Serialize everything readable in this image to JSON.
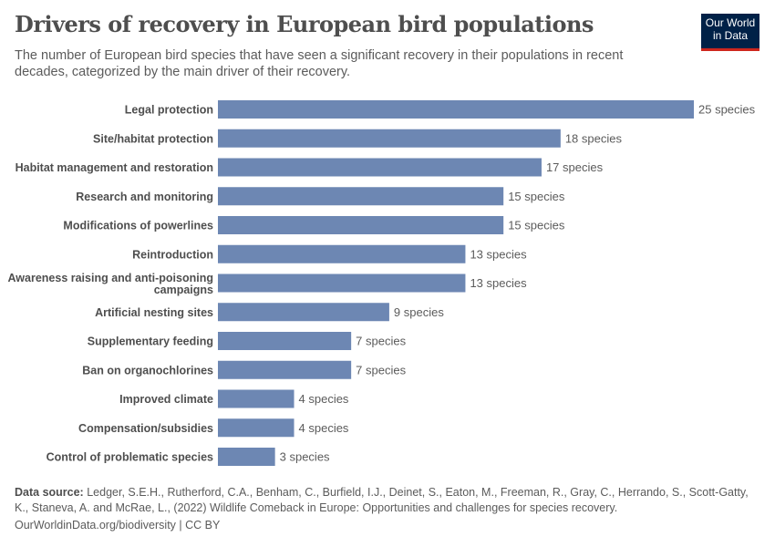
{
  "header": {
    "title": "Drivers of recovery in European bird populations",
    "subtitle": "The number of European bird species that have seen a significant recovery in their populations in recent decades, categorized by the main driver of their recovery.",
    "logo": "Our World in Data"
  },
  "chart_data": {
    "type": "bar",
    "orientation": "horizontal",
    "bar_color": "#6d87b3",
    "unit_suffix": " species",
    "categories": [
      "Legal protection",
      "Site/habitat protection",
      "Habitat management and restoration",
      "Research and monitoring",
      "Modifications of powerlines",
      "Reintroduction",
      "Awareness raising and anti-poisoning campaigns",
      "Artificial nesting sites",
      "Supplementary feeding",
      "Ban on organochlorines",
      "Improved climate",
      "Compensation/subsidies",
      "Control of problematic species"
    ],
    "values": [
      25,
      18,
      17,
      15,
      15,
      13,
      13,
      9,
      7,
      7,
      4,
      4,
      3
    ]
  },
  "footer": {
    "source_label": "Data source:",
    "source": "Ledger, S.E.H., Rutherford, C.A., Benham, C., Burfield, I.J., Deinet, S., Eaton, M., Freeman, R., Gray, C., Herrando, S., Scott-Gatty, K., Staneva, A. and McRae, L., (2022) Wildlife Comeback in Europe: Opportunities and challenges for species recovery.",
    "url": "OurWorldinData.org/biodiversity | CC BY"
  }
}
